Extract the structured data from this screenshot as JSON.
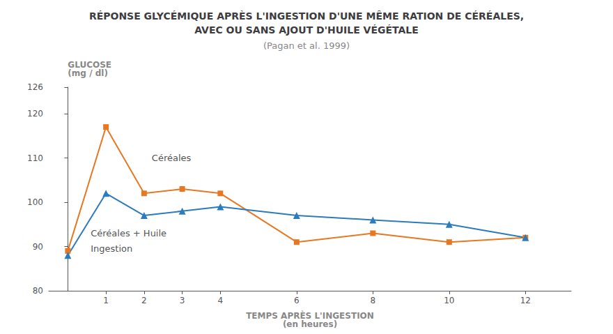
{
  "chart_data": {
    "type": "line",
    "title": "RÉPONSE GLYCÉMIQUE APRÈS L'INGESTION D'UNE MÊME RATION DE CÉRÉALES,\nAVEC OU SANS AJOUT D'HUILE VÉGÉTALE",
    "subtitle": "(Pagan et al. 1999)",
    "xlabel": "TEMPS APRÈS L'INGESTION\n(en heures)",
    "ylabel": "GLUCOSE\n(mg / dl)",
    "series": [
      {
        "color": "#E87722",
        "marker": "square",
        "x": [
          0,
          1,
          2,
          3,
          4,
          6,
          8,
          10,
          12
        ],
        "values": [
          89,
          117,
          102,
          103,
          102,
          91,
          93,
          91,
          92
        ]
      },
      {
        "color": "#2B7BBD",
        "marker": "triangle",
        "x": [
          0,
          1,
          2,
          3,
          4,
          6,
          8,
          10,
          12
        ],
        "values": [
          88,
          102,
          97,
          98,
          99,
          97,
          96,
          95,
          92
        ]
      }
    ],
    "annotations": [
      {
        "text": "Céréales",
        "x": 2.2,
        "y": 110
      },
      {
        "text": "Céréales + Huile",
        "x": 0.6,
        "y": 93
      },
      {
        "text": "Ingestion",
        "x": 0.6,
        "y": 89.5
      }
    ],
    "xlim": [
      -0.5,
      13.2
    ],
    "xticks": [
      1,
      2,
      3,
      4,
      6,
      8,
      10,
      12
    ],
    "ylim": [
      80,
      126
    ],
    "yticks": [
      80,
      90,
      100,
      110,
      120
    ],
    "grid": false,
    "legend": false
  }
}
